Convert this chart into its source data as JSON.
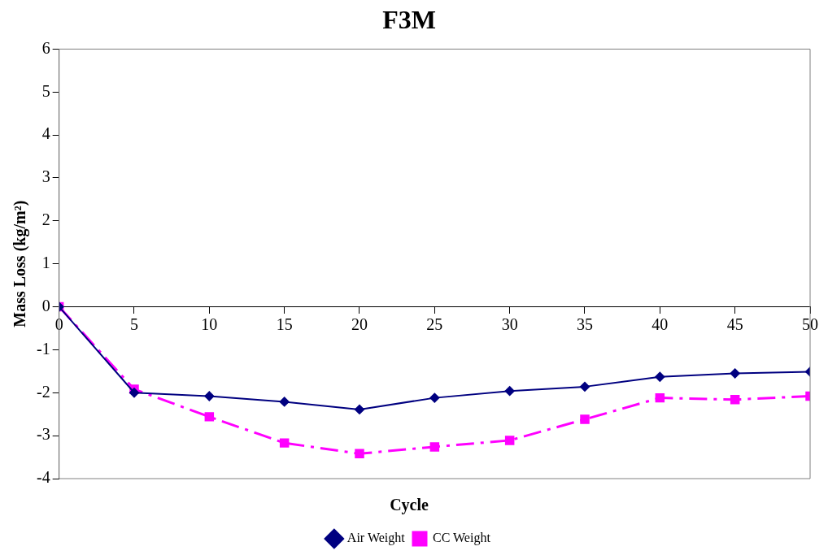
{
  "chart_data": {
    "type": "line",
    "title": "F3M",
    "xlabel": "Cycle",
    "ylabel": "Mass Loss (kg/m²)",
    "x": [
      0,
      5,
      10,
      15,
      20,
      25,
      30,
      35,
      40,
      45,
      50
    ],
    "series": [
      {
        "name": "CC Weight",
        "color": "#ff00ff",
        "marker": "square",
        "line_style": "dashed",
        "values": [
          0,
          -1.92,
          -2.56,
          -3.17,
          -3.42,
          -3.26,
          -3.11,
          -2.62,
          -2.12,
          -2.16,
          -2.08
        ]
      },
      {
        "name": "Air Weight",
        "color": "#000080",
        "marker": "diamond",
        "line_style": "solid",
        "values": [
          0,
          -2.0,
          -2.08,
          -2.21,
          -2.39,
          -2.12,
          -1.96,
          -1.86,
          -1.63,
          -1.55,
          -1.51
        ]
      }
    ],
    "xlim": [
      0,
      50
    ],
    "xticks": [
      0,
      5,
      10,
      15,
      20,
      25,
      30,
      35,
      40,
      45,
      50
    ],
    "ylim": [
      -4,
      6
    ],
    "yticks": [
      -4,
      -3,
      -2,
      -1,
      0,
      1,
      2,
      3,
      4,
      5,
      6
    ],
    "grid": false,
    "legend": "bottom"
  }
}
